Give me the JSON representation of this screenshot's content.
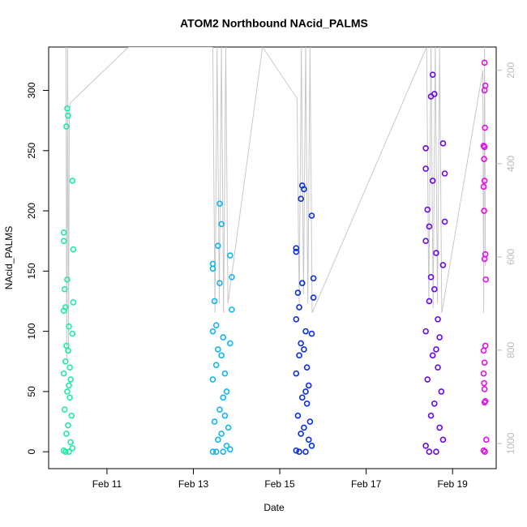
{
  "chart_data": {
    "type": "scatter",
    "title": "ATOM2 Northbound NAcid_PALMS",
    "x_label": "Date",
    "y_label": "NAcid_PALMS",
    "xlim": [
      9.65,
      20.01
    ],
    "xticks": [
      {
        "value": 11,
        "label": "Feb 11"
      },
      {
        "value": 13,
        "label": "Feb 13"
      },
      {
        "value": 15,
        "label": "Feb 15"
      },
      {
        "value": 17,
        "label": "Feb 17"
      },
      {
        "value": 19,
        "label": "Feb 19"
      }
    ],
    "ylim": [
      -14,
      336
    ],
    "yticks": [
      0,
      50,
      100,
      150,
      200,
      250,
      300
    ],
    "y2lim": [
      1054,
      150
    ],
    "y2ticks": [
      200,
      400,
      600,
      800,
      1000
    ],
    "series": [
      {
        "color": "#20EBA8",
        "x": [
          10.08,
          10.1,
          10.06,
          10.2,
          10.0,
          10.0,
          10.22,
          10.08,
          10.02,
          10.22,
          10.04,
          10.0,
          10.12,
          10.2,
          10.06,
          10.1,
          10.04,
          10.14,
          10.0,
          10.16,
          10.12,
          10.08,
          10.14,
          10.02,
          10.18,
          10.1,
          10.06,
          10.16,
          10.2,
          10.0,
          10.04,
          10.12
        ],
        "values": [
          285,
          279,
          270,
          225,
          182,
          175,
          168,
          143,
          135,
          124,
          120,
          117,
          104,
          98,
          88,
          84,
          75,
          70,
          65,
          60,
          55,
          50,
          45,
          35,
          30,
          22,
          15,
          8,
          3,
          1,
          0,
          0
        ]
      },
      {
        "color": "#12B6EE",
        "x": [
          13.61,
          13.65,
          13.57,
          13.85,
          13.45,
          13.45,
          13.89,
          13.61,
          13.49,
          13.89,
          13.53,
          13.45,
          13.69,
          13.85,
          13.57,
          13.65,
          13.53,
          13.73,
          13.45,
          13.77,
          13.69,
          13.61,
          13.73,
          13.49,
          13.81,
          13.65,
          13.57,
          13.77,
          13.85,
          13.45,
          13.53,
          13.69
        ],
        "values": [
          206,
          189,
          171,
          163,
          156,
          152,
          145,
          140,
          125,
          118,
          105,
          100,
          95,
          90,
          85,
          80,
          72,
          65,
          60,
          50,
          45,
          35,
          30,
          25,
          20,
          15,
          10,
          5,
          2,
          0,
          0,
          0
        ]
      },
      {
        "color": "#0A2EE6",
        "x": [
          15.52,
          15.56,
          15.49,
          15.74,
          15.38,
          15.38,
          15.78,
          15.52,
          15.42,
          15.78,
          15.45,
          15.38,
          15.6,
          15.74,
          15.49,
          15.56,
          15.45,
          15.63,
          15.38,
          15.67,
          15.6,
          15.52,
          15.63,
          15.42,
          15.7,
          15.56,
          15.49,
          15.67,
          15.74,
          15.38,
          15.45,
          15.6
        ],
        "values": [
          221,
          218,
          210,
          196,
          169,
          166,
          144,
          140,
          132,
          128,
          120,
          110,
          100,
          98,
          90,
          85,
          80,
          70,
          65,
          55,
          50,
          45,
          40,
          30,
          25,
          20,
          15,
          10,
          5,
          1,
          0,
          0
        ]
      },
      {
        "color": "#6A0AE8",
        "x": [
          18.54,
          18.58,
          18.5,
          18.78,
          18.38,
          18.38,
          18.82,
          18.54,
          18.42,
          18.82,
          18.46,
          18.38,
          18.62,
          18.78,
          18.5,
          18.58,
          18.46,
          18.66,
          18.38,
          18.7,
          18.62,
          18.54,
          18.66,
          18.42,
          18.74,
          18.58,
          18.5,
          18.7,
          18.78,
          18.38,
          18.46,
          18.62
        ],
        "values": [
          313,
          297,
          295,
          256,
          252,
          235,
          231,
          225,
          201,
          191,
          187,
          175,
          165,
          155,
          145,
          135,
          125,
          110,
          100,
          95,
          85,
          80,
          70,
          60,
          50,
          40,
          30,
          20,
          10,
          5,
          0,
          0
        ]
      },
      {
        "color": "#E010E8",
        "x": [
          19.74,
          19.76,
          19.74,
          19.75,
          19.72,
          19.74,
          19.73,
          19.74,
          19.72,
          19.73,
          19.76,
          19.74,
          19.77,
          19.76,
          19.72,
          19.74,
          19.72,
          19.73,
          19.74,
          19.76,
          19.74,
          19.78,
          19.72,
          19.75
        ],
        "values": [
          323,
          304,
          300,
          269,
          254,
          253,
          243,
          225,
          220,
          200,
          164,
          160,
          143,
          88,
          84,
          74,
          65,
          57,
          52,
          42,
          41,
          10,
          1,
          0
        ]
      },
      {
        "color": "#C8C8C8",
        "axis": "y2",
        "style": "line",
        "x": [
          10.05,
          10.07,
          10.09,
          10.11,
          10.13,
          10.15,
          11.5,
          13.45,
          13.5,
          13.55,
          13.6,
          13.65,
          13.7,
          13.75,
          13.8,
          14.6,
          15.4,
          15.45,
          15.5,
          15.55,
          15.6,
          15.65,
          15.7,
          15.75,
          18.4,
          18.45,
          18.5,
          18.55,
          18.6,
          18.65,
          18.7,
          18.75,
          19.7,
          19.72,
          19.74,
          19.76
        ],
        "values": [
          150,
          820,
          150,
          800,
          280,
          270,
          150,
          150,
          720,
          150,
          700,
          150,
          720,
          150,
          700,
          150,
          260,
          700,
          150,
          680,
          150,
          700,
          150,
          720,
          150,
          700,
          150,
          710,
          150,
          700,
          150,
          720,
          200,
          720,
          150,
          620
        ]
      }
    ]
  }
}
